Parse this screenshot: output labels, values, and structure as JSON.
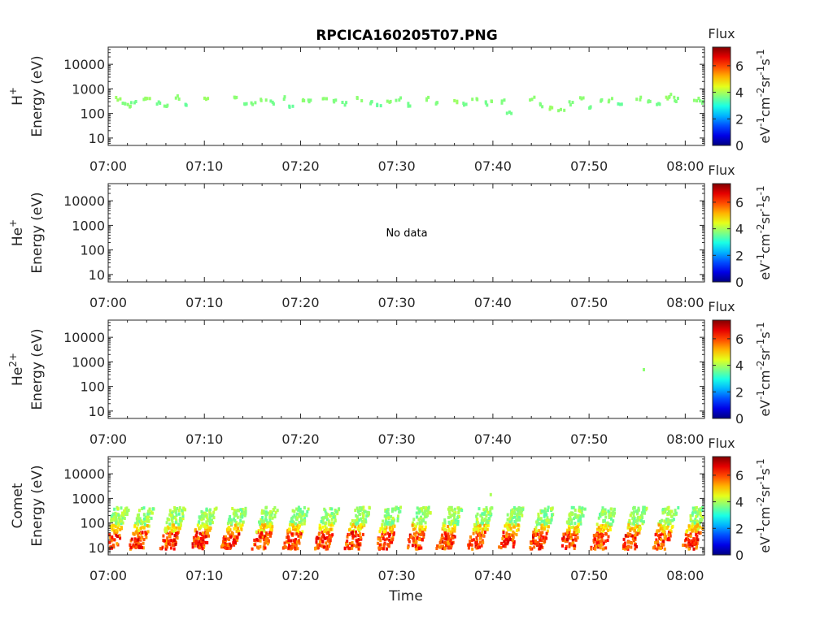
{
  "title": "RPCICA160205T07.PNG",
  "x_label": "Time",
  "x_ticks": [
    "07:00",
    "07:10",
    "07:20",
    "07:30",
    "07:40",
    "07:50",
    "08:00"
  ],
  "y_ticks": [
    "10",
    "100",
    "1000",
    "10000"
  ],
  "y_axis_label": "Energy (eV)",
  "colorbar": {
    "title": "Flux",
    "ticks": [
      "0",
      "2",
      "4",
      "6"
    ],
    "label_parts": [
      "eV",
      "-1",
      "cm",
      "-2",
      "sr",
      "-1",
      "s",
      "-1"
    ],
    "colormap": "jet"
  },
  "chart_data": [
    {
      "type": "heatmap",
      "species": "H",
      "species_sup": "+",
      "x_range_min": [
        0,
        62
      ],
      "y_range_eV": [
        5,
        50000
      ],
      "y_scale": "log",
      "grid": false,
      "no_data_text": "",
      "clusters": [
        {
          "t": 1,
          "e": 450,
          "f": 3.9
        },
        {
          "t": 1.5,
          "e": 280,
          "f": 3.7
        },
        {
          "t": 2,
          "e": 250,
          "f": 3.8
        },
        {
          "t": 2.5,
          "e": 320,
          "f": 3.6
        },
        {
          "t": 3.5,
          "e": 420,
          "f": 3.8
        },
        {
          "t": 4,
          "e": 500,
          "f": 3.9
        },
        {
          "t": 5,
          "e": 300,
          "f": 3.6
        },
        {
          "t": 6,
          "e": 250,
          "f": 3.7
        },
        {
          "t": 7,
          "e": 520,
          "f": 3.8
        },
        {
          "t": 8,
          "e": 280,
          "f": 3.5
        },
        {
          "t": 10,
          "e": 480,
          "f": 3.9
        },
        {
          "t": 13,
          "e": 500,
          "f": 3.8
        },
        {
          "t": 14,
          "e": 300,
          "f": 3.6
        },
        {
          "t": 15,
          "e": 280,
          "f": 3.7
        },
        {
          "t": 16,
          "e": 450,
          "f": 3.8
        },
        {
          "t": 17,
          "e": 320,
          "f": 3.6
        },
        {
          "t": 18,
          "e": 480,
          "f": 3.7
        },
        {
          "t": 19,
          "e": 250,
          "f": 3.5
        },
        {
          "t": 20,
          "e": 420,
          "f": 3.8
        },
        {
          "t": 21,
          "e": 350,
          "f": 3.7
        },
        {
          "t": 22.5,
          "e": 400,
          "f": 3.8
        },
        {
          "t": 23.5,
          "e": 380,
          "f": 3.7
        },
        {
          "t": 24.5,
          "e": 300,
          "f": 3.6
        },
        {
          "t": 26,
          "e": 450,
          "f": 3.8
        },
        {
          "t": 27,
          "e": 300,
          "f": 3.6
        },
        {
          "t": 28,
          "e": 250,
          "f": 3.5
        },
        {
          "t": 29,
          "e": 350,
          "f": 3.8
        },
        {
          "t": 30,
          "e": 420,
          "f": 3.7
        },
        {
          "t": 31,
          "e": 260,
          "f": 3.6
        },
        {
          "t": 33,
          "e": 450,
          "f": 3.8
        },
        {
          "t": 34,
          "e": 320,
          "f": 3.7
        },
        {
          "t": 36,
          "e": 380,
          "f": 3.9
        },
        {
          "t": 37,
          "e": 280,
          "f": 3.6
        },
        {
          "t": 38,
          "e": 400,
          "f": 3.8
        },
        {
          "t": 39,
          "e": 300,
          "f": 3.6
        },
        {
          "t": 40,
          "e": 420,
          "f": 3.8
        },
        {
          "t": 41,
          "e": 350,
          "f": 3.7
        },
        {
          "t": 41.5,
          "e": 120,
          "f": 3.6
        },
        {
          "t": 44,
          "e": 450,
          "f": 3.8
        },
        {
          "t": 45,
          "e": 250,
          "f": 3.7
        },
        {
          "t": 46,
          "e": 200,
          "f": 3.9
        },
        {
          "t": 47,
          "e": 180,
          "f": 3.8
        },
        {
          "t": 48,
          "e": 300,
          "f": 3.7
        },
        {
          "t": 49,
          "e": 450,
          "f": 3.8
        },
        {
          "t": 50,
          "e": 200,
          "f": 3.6
        },
        {
          "t": 51,
          "e": 350,
          "f": 3.7
        },
        {
          "t": 52,
          "e": 400,
          "f": 3.8
        },
        {
          "t": 53,
          "e": 250,
          "f": 3.5
        },
        {
          "t": 55,
          "e": 480,
          "f": 3.8
        },
        {
          "t": 56,
          "e": 350,
          "f": 3.7
        },
        {
          "t": 57,
          "e": 300,
          "f": 3.6
        },
        {
          "t": 58,
          "e": 500,
          "f": 3.9
        },
        {
          "t": 58.5,
          "e": 600,
          "f": 3.8
        },
        {
          "t": 59,
          "e": 420,
          "f": 3.7
        },
        {
          "t": 61,
          "e": 450,
          "f": 3.8
        },
        {
          "t": 61.5,
          "e": 350,
          "f": 3.7
        }
      ]
    },
    {
      "type": "heatmap",
      "species": "He",
      "species_sup": "+",
      "x_range_min": [
        0,
        62
      ],
      "y_range_eV": [
        5,
        50000
      ],
      "y_scale": "log",
      "grid": false,
      "no_data_text": "No data",
      "clusters": []
    },
    {
      "type": "heatmap",
      "species": "He",
      "species_sup": "2+",
      "x_range_min": [
        0,
        62
      ],
      "y_range_eV": [
        5,
        50000
      ],
      "y_scale": "log",
      "grid": false,
      "no_data_text": "",
      "clusters": [
        {
          "t": 55.3,
          "e": 550,
          "f": 3.8
        }
      ]
    },
    {
      "type": "heatmap",
      "species": "Comet",
      "species_sup": "",
      "x_range_min": [
        0,
        62
      ],
      "y_range_eV": [
        5,
        50000
      ],
      "y_scale": "log",
      "grid": false,
      "no_data_text": "",
      "burst_times_min": [
        0.3,
        3,
        6.2,
        9.4,
        12.6,
        15.8,
        19,
        22.2,
        25.4,
        28.6,
        31.8,
        35,
        38.2,
        41.4,
        44.6,
        47.8,
        51,
        54.2,
        57.4,
        60.5
      ],
      "clusters": [
        {
          "t": 39.6,
          "e": 1500,
          "f": 4.0
        }
      ]
    }
  ]
}
